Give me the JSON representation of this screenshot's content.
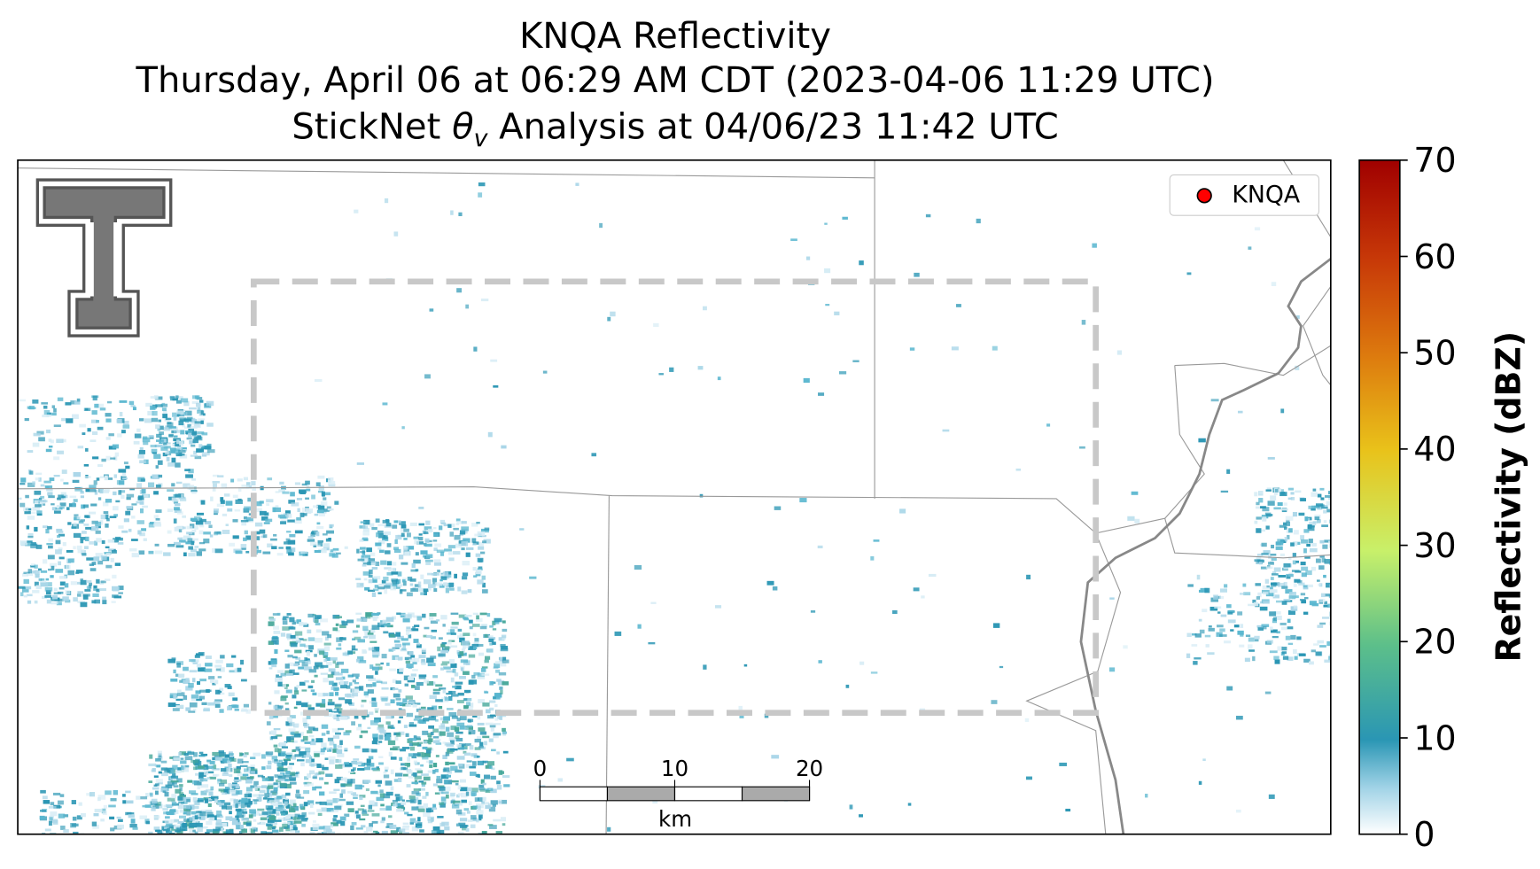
{
  "title": {
    "line1": "KNQA Reflectivity",
    "line2": "Thursday, April 06 at 06:29 AM CDT (2023-04-06 11:29 UTC)",
    "line3": {
      "before": "StickNet",
      "symbol": "θ",
      "subscript": "v",
      "after": "Analysis at 04/06/23 11:42 UTC"
    }
  },
  "legend": {
    "label": "KNQA",
    "color": "#ff0000"
  },
  "scale_bar": {
    "lim": [
      0,
      20
    ],
    "ticks": [
      0,
      10,
      20
    ],
    "unit": "km"
  },
  "colorbar": {
    "label": "Reflectivity (dBZ)",
    "lim": [
      0,
      70
    ],
    "ticks": [
      0,
      10,
      20,
      30,
      40,
      50,
      60,
      70
    ]
  }
}
